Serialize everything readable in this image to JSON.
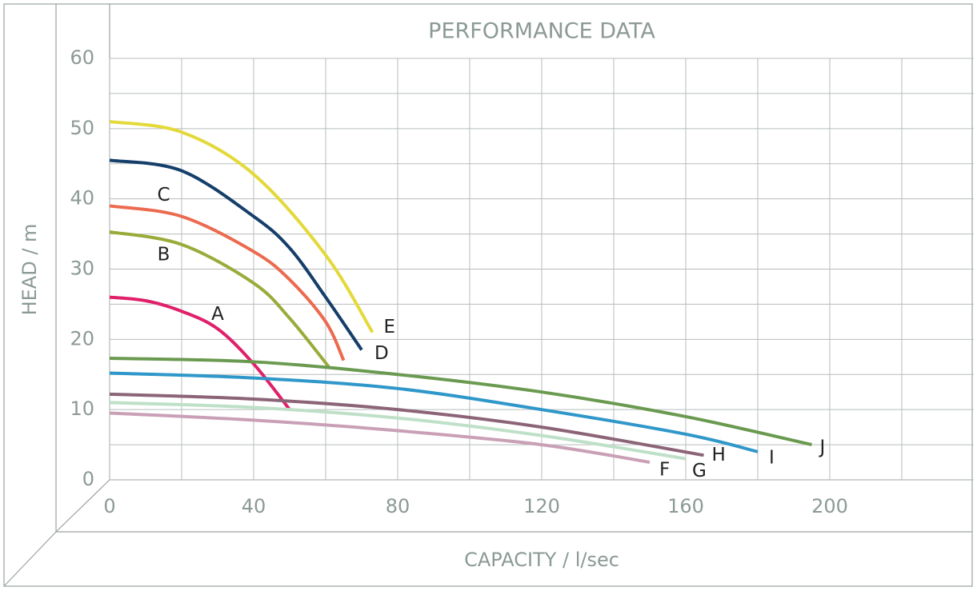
{
  "chart_data": {
    "type": "line",
    "title": "PERFORMANCE DATA",
    "x_label": "CAPACITY / l/sec",
    "y_label": "HEAD / m",
    "xlim": [
      0,
      240
    ],
    "ylim": [
      0,
      60
    ],
    "xticks": [
      0,
      40,
      80,
      120,
      160,
      200
    ],
    "xminor": [
      20,
      60,
      100,
      140,
      180,
      220
    ],
    "yticks": [
      0,
      10,
      20,
      30,
      40,
      50,
      60
    ],
    "yminor": [
      5,
      15,
      25,
      35,
      45,
      55
    ],
    "grid": true,
    "series": [
      {
        "name": "A",
        "color": "#e0206a",
        "x": [
          0,
          10,
          20,
          30,
          40,
          50
        ],
        "values": [
          26,
          25.5,
          24,
          21.5,
          16.5,
          10
        ]
      },
      {
        "name": "B",
        "color": "#9aab3a",
        "x": [
          0,
          20,
          40,
          50,
          61
        ],
        "values": [
          35.3,
          33.5,
          28,
          23,
          16
        ]
      },
      {
        "name": "C",
        "color": "#ec6a4f",
        "x": [
          0,
          20,
          40,
          50,
          60,
          65
        ],
        "values": [
          39,
          37.5,
          32.5,
          28.5,
          22.5,
          17
        ]
      },
      {
        "name": "D",
        "color": "#153f6a",
        "x": [
          0,
          20,
          40,
          50,
          60,
          70
        ],
        "values": [
          45.5,
          44,
          37.5,
          33,
          26,
          18.5
        ]
      },
      {
        "name": "E",
        "color": "#e3d93a",
        "x": [
          0,
          20,
          40,
          60,
          73
        ],
        "values": [
          51,
          49.5,
          43.5,
          32,
          21
        ]
      },
      {
        "name": "F",
        "color": "#c9a0b6",
        "x": [
          0,
          40,
          80,
          120,
          150
        ],
        "values": [
          9.5,
          8.5,
          7,
          5,
          2.5
        ]
      },
      {
        "name": "G",
        "color": "#bfe0c8",
        "x": [
          0,
          40,
          80,
          120,
          160
        ],
        "values": [
          11,
          10.3,
          8.8,
          6.3,
          3
        ]
      },
      {
        "name": "H",
        "color": "#8c6478",
        "x": [
          0,
          40,
          80,
          120,
          165
        ],
        "values": [
          12.2,
          11.5,
          10,
          7.5,
          3.5
        ]
      },
      {
        "name": "I",
        "color": "#2f97c9",
        "x": [
          0,
          40,
          80,
          120,
          160,
          180
        ],
        "values": [
          15.2,
          14.5,
          13,
          10,
          6.5,
          4
        ]
      },
      {
        "name": "J",
        "color": "#6a9a50",
        "x": [
          0,
          40,
          80,
          120,
          160,
          195
        ],
        "values": [
          17.3,
          16.8,
          15,
          12.5,
          9,
          5
        ]
      }
    ]
  }
}
